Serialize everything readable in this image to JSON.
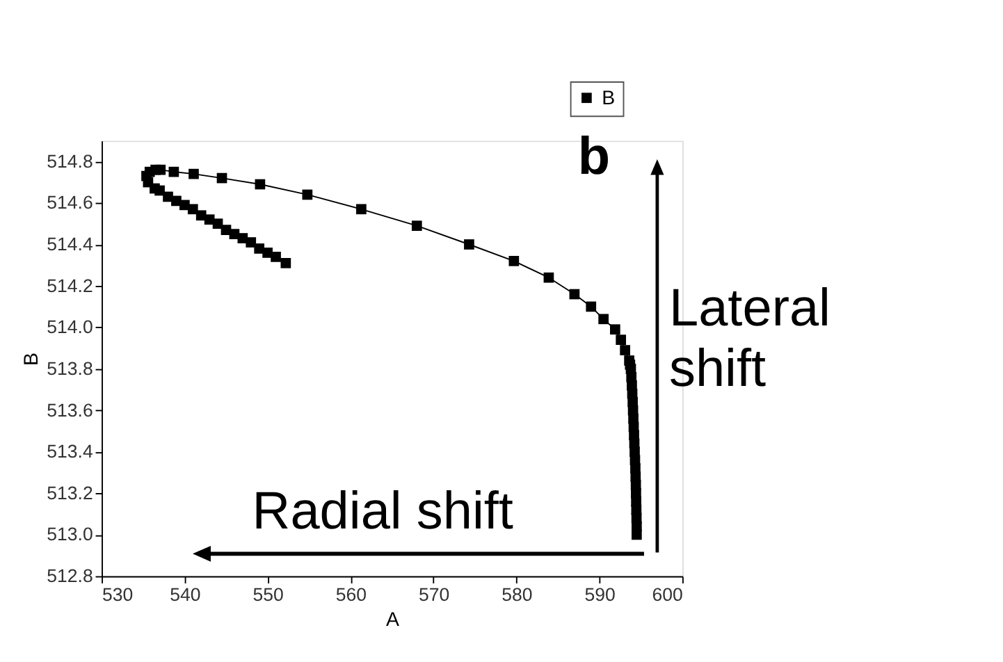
{
  "chart_data": {
    "type": "line",
    "xlabel": "A",
    "ylabel": "B",
    "xlim": [
      530,
      600
    ],
    "xticks": [
      530,
      540,
      550,
      560,
      570,
      580,
      590,
      600
    ],
    "ylim": [
      512.8,
      514.9
    ],
    "yticks": [
      512.8,
      {
        "value": 513,
        "label": "513.0"
      },
      513.2,
      513.4,
      513.6,
      513.8,
      {
        "value": 514,
        "label": "514.0"
      },
      514.2,
      514.4,
      514.6,
      514.8
    ],
    "grid": false,
    "legend": "top right",
    "marker": "square",
    "line_style": "solid",
    "annotations": [
      "b",
      "Lateral shift",
      "Radial shift"
    ],
    "series": [
      {
        "name": "B",
        "color": "#000000",
        "x": [
          594.5,
          594.5,
          594.48,
          594.46,
          594.44,
          594.42,
          594.4,
          594.37,
          594.34,
          594.3,
          594.26,
          594.22,
          594.18,
          594.14,
          594.1,
          594.06,
          594.02,
          593.97,
          593.92,
          593.86,
          593.8,
          593.7,
          593.6,
          593.1,
          592.6,
          591.9,
          590.5,
          589.0,
          587.0,
          583.9,
          579.7,
          574.3,
          568.0,
          561.3,
          554.8,
          549.1,
          544.5,
          541.1,
          538.7,
          537.1,
          536.5,
          535.8,
          535.4,
          535.6,
          536.4,
          537,
          538,
          539,
          540,
          541,
          542,
          543,
          544,
          545,
          546,
          547,
          548,
          549,
          550,
          551,
          552.2
        ],
        "values": [
          513.0,
          513.04,
          513.08,
          513.12,
          513.16,
          513.2,
          513.24,
          513.28,
          513.32,
          513.36,
          513.4,
          513.44,
          513.48,
          513.52,
          513.56,
          513.6,
          513.64,
          513.68,
          513.72,
          513.76,
          513.8,
          513.82,
          513.84,
          513.89,
          513.94,
          513.99,
          514.04,
          514.1,
          514.16,
          514.24,
          514.32,
          514.4,
          514.49,
          514.57,
          514.64,
          514.69,
          514.72,
          514.74,
          514.75,
          514.76,
          514.76,
          514.75,
          514.73,
          514.7,
          514.67,
          514.66,
          514.63,
          514.61,
          514.59,
          514.57,
          514.54,
          514.52,
          514.5,
          514.47,
          514.45,
          514.43,
          514.41,
          514.38,
          514.36,
          514.34,
          514.31
        ]
      }
    ]
  }
}
